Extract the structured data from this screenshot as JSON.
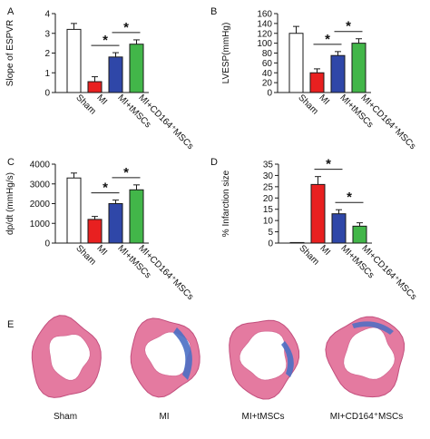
{
  "colors": {
    "sham": "#ffffff",
    "mi": "#e82020",
    "mi_tmsc": "#2f47a8",
    "mi_cd164": "#42b649",
    "stroke": "#1a1a1a",
    "tissue": "#e47aa0",
    "fibrosis": "#4a6fc4"
  },
  "chart_data": [
    {
      "panel": "A",
      "type": "bar",
      "ylabel": "Slope of ESPVR",
      "ylim": [
        0,
        4
      ],
      "yticks": [
        0,
        1,
        2,
        3,
        4
      ],
      "categories": [
        "Sham",
        "MI",
        "MI+tMSCs",
        "MI+CD164⁺MSCs"
      ],
      "values": [
        3.2,
        0.55,
        1.8,
        2.45
      ],
      "errors": [
        0.3,
        0.25,
        0.22,
        0.22
      ],
      "significance": [
        {
          "from": 1,
          "to": 2,
          "label": "*"
        },
        {
          "from": 2,
          "to": 3,
          "label": "*"
        }
      ]
    },
    {
      "panel": "B",
      "type": "bar",
      "ylabel": "LVESP(mmHg)",
      "ylim": [
        0,
        160
      ],
      "yticks": [
        0,
        20,
        40,
        60,
        80,
        100,
        120,
        140,
        160
      ],
      "categories": [
        "Sham",
        "MI",
        "MI+tMSCs",
        "MI+CD164⁺MSCs"
      ],
      "values": [
        120,
        40,
        75,
        100
      ],
      "errors": [
        14,
        8,
        8,
        9
      ],
      "significance": [
        {
          "from": 1,
          "to": 2,
          "label": "*"
        },
        {
          "from": 2,
          "to": 3,
          "label": "*"
        }
      ]
    },
    {
      "panel": "C",
      "type": "bar",
      "ylabel": "dp/dt (mmHg/s)",
      "ylim": [
        0,
        4000
      ],
      "yticks": [
        0,
        1000,
        2000,
        3000,
        4000
      ],
      "categories": [
        "Sham",
        "MI",
        "MI+tMSCs",
        "MI+CD164⁺MSCs"
      ],
      "values": [
        3300,
        1200,
        2000,
        2700
      ],
      "errors": [
        250,
        150,
        180,
        250
      ],
      "significance": [
        {
          "from": 1,
          "to": 2,
          "label": "*"
        },
        {
          "from": 2,
          "to": 3,
          "label": "*"
        }
      ]
    },
    {
      "panel": "D",
      "type": "bar",
      "ylabel": "% Infarction size",
      "ylim": [
        0,
        35
      ],
      "yticks": [
        0,
        5,
        10,
        15,
        20,
        25,
        30,
        35
      ],
      "categories": [
        "Sham",
        "MI",
        "MI+tMSCs",
        "MI+CD164⁺MSCs"
      ],
      "values": [
        0.1,
        26,
        13,
        7.5
      ],
      "errors": [
        0,
        3.5,
        1.8,
        1.5
      ],
      "significance": [
        {
          "from": 1,
          "to": 2,
          "label": "*"
        },
        {
          "from": 2,
          "to": 3,
          "label": "*"
        }
      ]
    }
  ],
  "panel_e": {
    "letter": "E",
    "labels": [
      "Sham",
      "MI",
      "MI+tMSCs",
      "MI+CD164⁺MSCs"
    ]
  }
}
